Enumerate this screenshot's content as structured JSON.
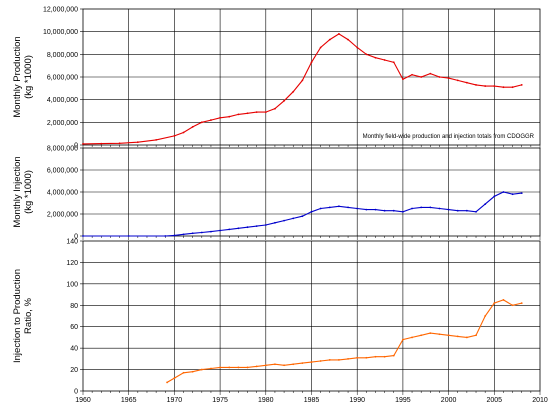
{
  "chart_data": [
    {
      "type": "line",
      "ylabel_lines": [
        "Monthly Production",
        "(kg *1000)"
      ],
      "annotation": "Monthly field-wide production and injection totals from CDOGGR",
      "xlim": [
        1960,
        2010
      ],
      "ylim": [
        0,
        12000000
      ],
      "ytick_values": [
        0,
        2000000,
        4000000,
        6000000,
        8000000,
        10000000,
        12000000
      ],
      "ytick_labels": [
        "0",
        "2,000,000",
        "4,000,000",
        "6,000,000",
        "8,000,000",
        "10,000,000",
        "12,000,000"
      ],
      "grid": true,
      "color": "#e60000",
      "series": [
        {
          "x": [
            1960,
            1962,
            1964,
            1966,
            1968,
            1970,
            1971,
            1972,
            1973,
            1974,
            1975,
            1976,
            1977,
            1978,
            1979,
            1980,
            1981,
            1982,
            1983,
            1984,
            1985,
            1986,
            1987,
            1988,
            1989,
            1990,
            1991,
            1992,
            1993,
            1994,
            1995,
            1996,
            1997,
            1998,
            1999,
            2000,
            2001,
            2002,
            2003,
            2004,
            2005,
            2006,
            2007,
            2008
          ],
          "y": [
            100000,
            120000,
            150000,
            250000,
            450000,
            800000,
            1100000,
            1600000,
            2000000,
            2200000,
            2400000,
            2500000,
            2700000,
            2800000,
            2900000,
            2900000,
            3200000,
            3900000,
            4700000,
            5700000,
            7300000,
            8600000,
            9300000,
            9800000,
            9300000,
            8600000,
            8000000,
            7700000,
            7500000,
            7300000,
            5800000,
            6200000,
            6000000,
            6300000,
            6000000,
            5900000,
            5700000,
            5500000,
            5300000,
            5200000,
            5200000,
            5100000,
            5100000,
            5300000
          ]
        }
      ]
    },
    {
      "type": "line",
      "ylabel_lines": [
        "Monthly Injection",
        "(kg *1000)"
      ],
      "xlim": [
        1960,
        2010
      ],
      "ylim": [
        0,
        8000000
      ],
      "ytick_values": [
        0,
        2000000,
        4000000,
        6000000,
        8000000
      ],
      "ytick_labels": [
        "0",
        "2,000,000",
        "4,000,000",
        "6,000,000",
        "8,000,000"
      ],
      "grid": true,
      "color": "#0000cc",
      "series": [
        {
          "x": [
            1960,
            1965,
            1969,
            1970,
            1971,
            1972,
            1973,
            1974,
            1975,
            1976,
            1977,
            1978,
            1979,
            1980,
            1981,
            1982,
            1983,
            1984,
            1985,
            1986,
            1987,
            1988,
            1989,
            1990,
            1991,
            1992,
            1993,
            1994,
            1995,
            1996,
            1997,
            1998,
            1999,
            2000,
            2001,
            2002,
            2003,
            2004,
            2005,
            2006,
            2007,
            2008
          ],
          "y": [
            0,
            0,
            0,
            50000,
            150000,
            250000,
            320000,
            400000,
            500000,
            600000,
            700000,
            800000,
            900000,
            1000000,
            1200000,
            1400000,
            1600000,
            1800000,
            2200000,
            2500000,
            2600000,
            2700000,
            2600000,
            2500000,
            2400000,
            2400000,
            2300000,
            2300000,
            2200000,
            2500000,
            2600000,
            2600000,
            2500000,
            2400000,
            2300000,
            2300000,
            2200000,
            2900000,
            3600000,
            4000000,
            3800000,
            3900000
          ]
        }
      ]
    },
    {
      "type": "line",
      "ylabel_lines": [
        "Injection to Production",
        "Ratio, %"
      ],
      "xlim": [
        1960,
        2010
      ],
      "ylim": [
        0,
        140
      ],
      "ytick_values": [
        0,
        20,
        40,
        60,
        80,
        100,
        120,
        140
      ],
      "ytick_labels": [
        "0",
        "20",
        "40",
        "60",
        "80",
        "100",
        "120",
        "140"
      ],
      "xtick_values": [
        1960,
        1965,
        1970,
        1975,
        1980,
        1985,
        1990,
        1995,
        2000,
        2005,
        2010
      ],
      "xtick_labels": [
        "1960",
        "1965",
        "1970",
        "1975",
        "1980",
        "1985",
        "1990",
        "1995",
        "2000",
        "2005",
        "2010"
      ],
      "grid": true,
      "color": "#ff6600",
      "series": [
        {
          "x": [
            1969.2,
            1970,
            1971,
            1972,
            1973,
            1974,
            1975,
            1976,
            1977,
            1978,
            1979,
            1980,
            1981,
            1982,
            1983,
            1984,
            1985,
            1986,
            1987,
            1988,
            1989,
            1990,
            1991,
            1992,
            1993,
            1994,
            1995,
            1996,
            1997,
            1998,
            1999,
            2000,
            2001,
            2002,
            2003,
            2004,
            2005,
            2006,
            2007,
            2008
          ],
          "y": [
            8,
            12,
            17,
            18,
            20,
            21,
            22,
            22,
            22,
            22,
            23,
            24,
            25,
            24,
            25,
            26,
            27,
            28,
            29,
            29,
            30,
            31,
            31,
            32,
            32,
            33,
            48,
            50,
            52,
            54,
            53,
            52,
            51,
            50,
            52,
            70,
            82,
            85,
            80,
            82
          ]
        }
      ]
    }
  ]
}
